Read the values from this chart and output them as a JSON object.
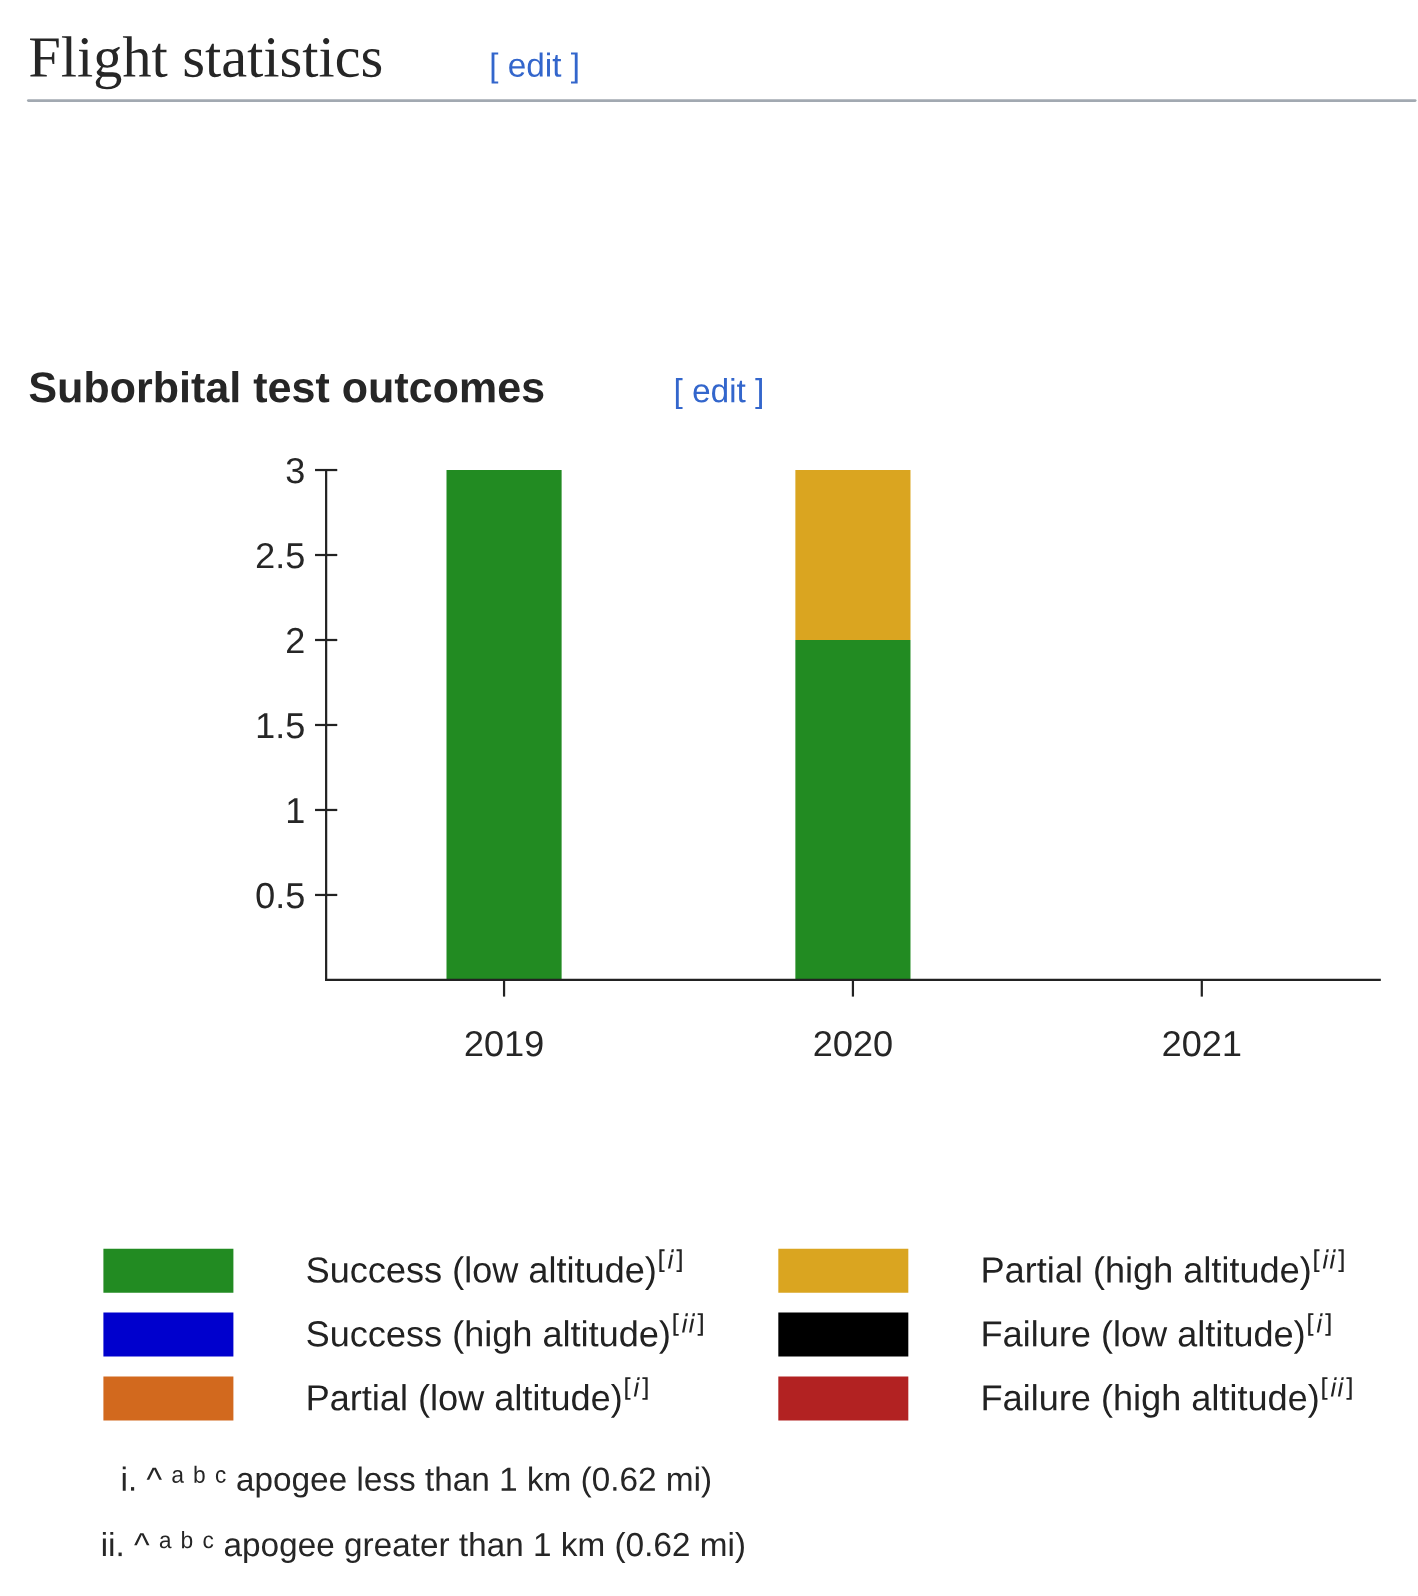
{
  "chart_data": {
    "type": "bar",
    "stacked": true,
    "title": "Flight statistics",
    "subtitle": "Suborbital test outcomes",
    "categories": [
      "2019",
      "2020",
      "2021"
    ],
    "series": [
      {
        "name": "Success (low altitude)$^{[i]}$",
        "color": "#228b22",
        "values": [
          3,
          2,
          0
        ]
      },
      {
        "name": "Success (high altitude)$^{[ii]}$",
        "color": "#0000cd",
        "values": [
          0,
          0,
          0
        ]
      },
      {
        "name": "Partial (low altitude)$^{[i]}$",
        "color": "#d2691e",
        "values": [
          0,
          0,
          0
        ]
      },
      {
        "name": "Partial (high altitude)$^{[ii]}$",
        "color": "#daa520",
        "values": [
          0,
          1,
          0
        ]
      },
      {
        "name": "Failure (low altitude)$^{[i]}$",
        "color": "#000000",
        "values": [
          0,
          0,
          0
        ]
      },
      {
        "name": "Failure (high altitude)$^{[ii]}$",
        "color": "#b22222",
        "values": [
          0,
          0,
          0
        ]
      }
    ],
    "ylim": [
      0,
      3
    ],
    "yticks": [
      0.5,
      1,
      1.5,
      2,
      2.5,
      3
    ],
    "grid": false,
    "legend": "bottom",
    "annotations": [
      "[ edit ]",
      "[ edit ]",
      "i. ^ ᵃ ᵇ ᶜ apogee less than 1 km (0.62 mi)",
      "ii. ^ ᵃ ᵇ ᶜ apogee greater than 1 km (0.62 mi)"
    ]
  }
}
